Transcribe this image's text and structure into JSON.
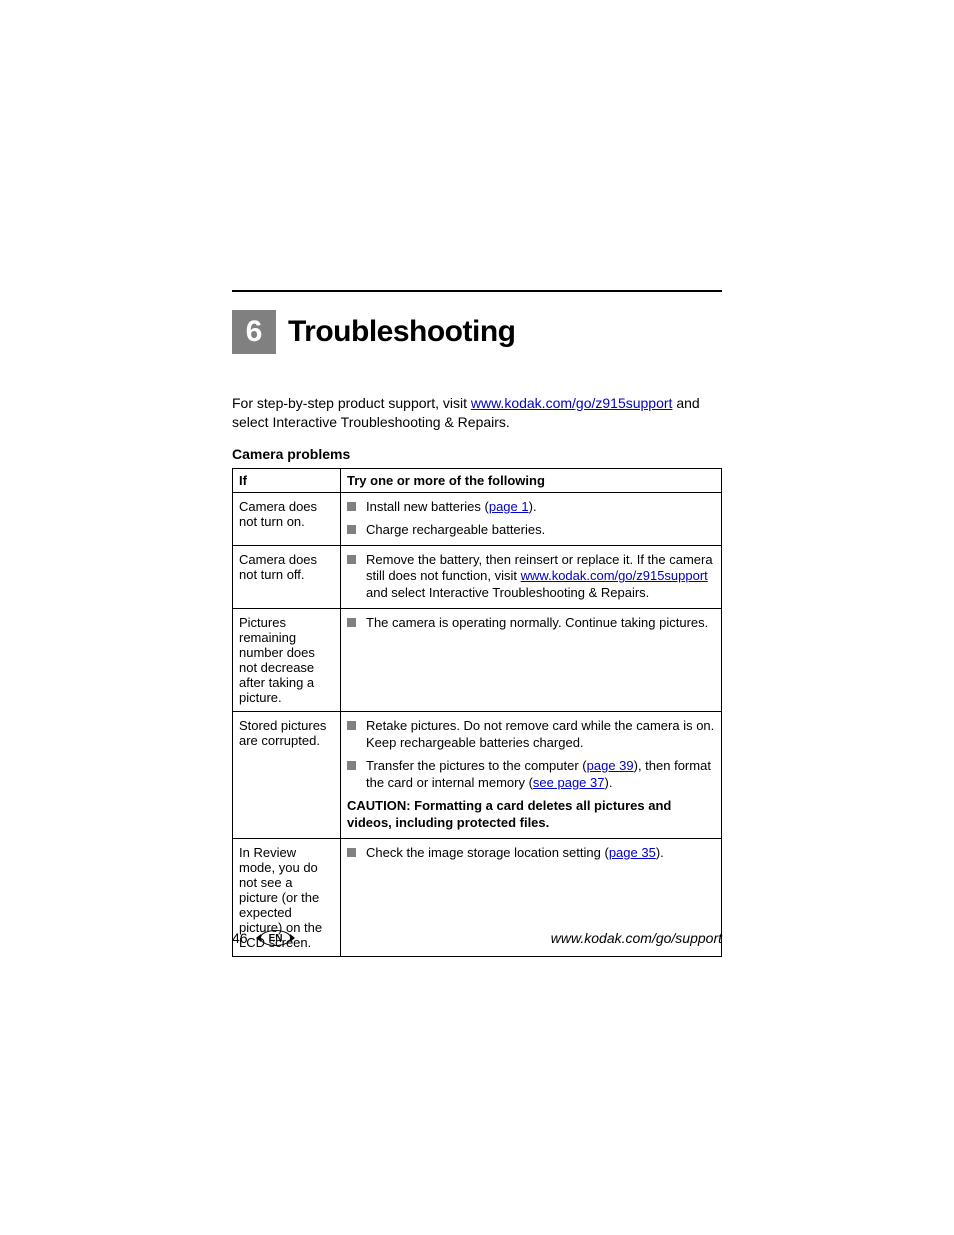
{
  "chapter": {
    "number": "6",
    "title": "Troubleshooting"
  },
  "intro": {
    "pre": "For step-by-step product support, visit ",
    "link": "www.kodak.com/go/z915support",
    "post": " and select Interactive Troubleshooting & Repairs."
  },
  "section_heading": "Camera problems",
  "table": {
    "head": {
      "col_if": "If",
      "col_try": "Try one or more of the following"
    },
    "rows": [
      {
        "if": "Camera does not turn on.",
        "items": [
          {
            "pre": "Install new batteries (",
            "link": "page 1",
            "post": ")."
          },
          {
            "text": "Charge rechargeable batteries."
          }
        ]
      },
      {
        "if": "Camera does not turn off.",
        "items": [
          {
            "pre": "Remove the battery, then reinsert or replace it. If the camera still does not function, visit ",
            "link": "www.kodak.com/go/z915support",
            "post": " and select Interactive Troubleshooting & Repairs."
          }
        ]
      },
      {
        "if": "Pictures remaining number does not decrease after taking a picture.",
        "items": [
          {
            "text": "The camera is operating normally. Continue taking pictures."
          }
        ]
      },
      {
        "if": "Stored pictures are corrupted.",
        "items": [
          {
            "text": "Retake pictures. Do not remove card while the camera is on. Keep rechargeable batteries charged."
          },
          {
            "pre": "Transfer the pictures to the computer (",
            "link": "page 39",
            "mid": "), then format the card or internal memory (",
            "link2": "see page 37",
            "post": ")."
          }
        ],
        "caution": "CAUTION: Formatting a card deletes all pictures and videos, including protected files."
      },
      {
        "if": "In Review mode, you do not see a picture (or the expected picture) on the LCD screen.",
        "items": [
          {
            "pre": "Check the image storage location setting (",
            "link": "page 35",
            "post": ")."
          }
        ]
      }
    ]
  },
  "footer": {
    "page": "46",
    "lang": "EN",
    "url": "www.kodak.com/go/support"
  },
  "colors": {
    "badge_bg": "#808080",
    "link": "#0000cc"
  }
}
